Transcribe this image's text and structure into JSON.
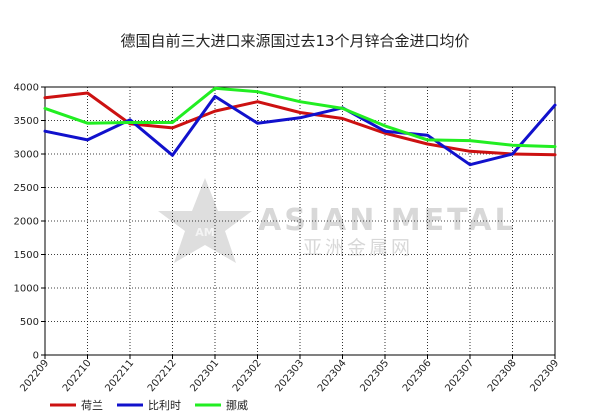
{
  "chart_data": {
    "type": "line",
    "title": "德国自前三大进口来源国过去13个月锌合金进口均价",
    "categories": [
      "202209",
      "202210",
      "202211",
      "202212",
      "202301",
      "202302",
      "202303",
      "202304",
      "202305",
      "202306",
      "202307",
      "202308",
      "202309"
    ],
    "y_ticks": [
      0,
      500,
      1000,
      1500,
      2000,
      2500,
      3000,
      3500,
      4000
    ],
    "ylim": [
      0,
      4000
    ],
    "grid": true,
    "legend_position": "bottom-left",
    "series": [
      {
        "name": "荷兰",
        "color": "#cc1111",
        "values": [
          3840,
          3910,
          3450,
          3390,
          3640,
          3780,
          3620,
          3530,
          3310,
          3150,
          3040,
          3000,
          2990
        ]
      },
      {
        "name": "比利时",
        "color": "#1111cc",
        "values": [
          3340,
          3210,
          3510,
          2980,
          3860,
          3460,
          3540,
          3690,
          3340,
          3280,
          2840,
          3000,
          3730
        ]
      },
      {
        "name": "挪威",
        "color": "#22ee22",
        "values": [
          3680,
          3460,
          3470,
          3470,
          3980,
          3930,
          3780,
          3680,
          3420,
          3210,
          3200,
          3130,
          3110
        ]
      }
    ]
  },
  "watermark": {
    "text_en": "ASIAN METAL",
    "text_cn": "亚洲金属网",
    "logo_text": "AM",
    "color": "#d8d8d8"
  }
}
